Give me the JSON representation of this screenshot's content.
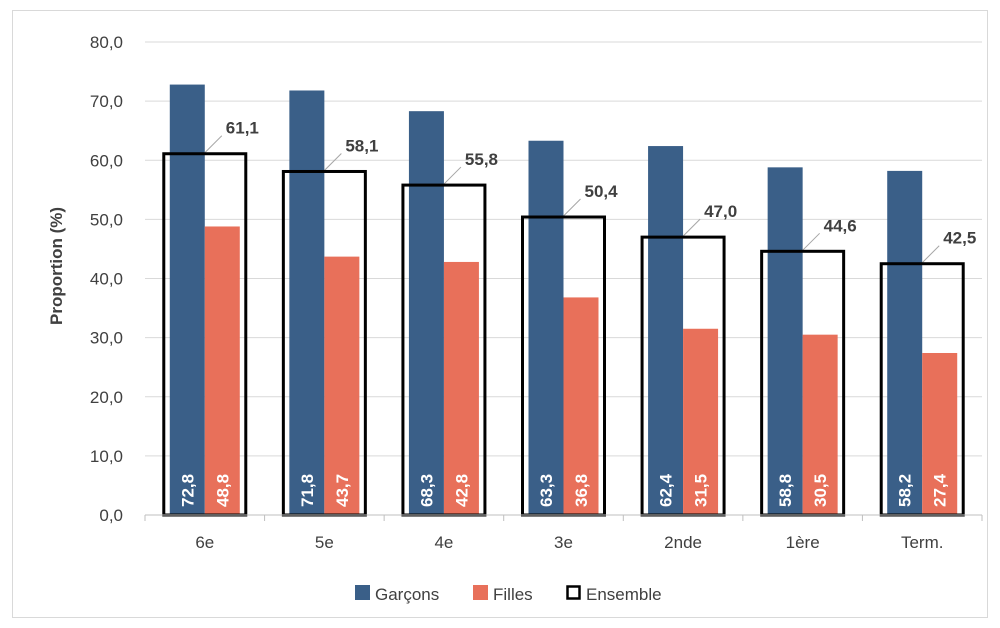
{
  "chart_data": {
    "type": "bar",
    "title": "",
    "xlabel": "",
    "ylabel": "Proportion (%)",
    "ylim": [
      0,
      80
    ],
    "ytick_step": 10,
    "categories": [
      "6e",
      "5e",
      "4e",
      "3e",
      "2nde",
      "1ère",
      "Term."
    ],
    "series": [
      {
        "name": "Garçons",
        "values": [
          72.8,
          71.8,
          68.3,
          63.3,
          62.4,
          58.8,
          58.2
        ],
        "color": "#3a5f88"
      },
      {
        "name": "Filles",
        "values": [
          48.8,
          43.7,
          42.8,
          36.8,
          31.5,
          30.5,
          27.4
        ],
        "color": "#e8705a"
      },
      {
        "name": "Ensemble",
        "values": [
          61.1,
          58.1,
          55.8,
          50.4,
          47.0,
          44.6,
          42.5
        ],
        "color": "#000000",
        "style": "outline"
      }
    ],
    "grid": true,
    "legend": "bottom",
    "decimal_separator": ","
  }
}
